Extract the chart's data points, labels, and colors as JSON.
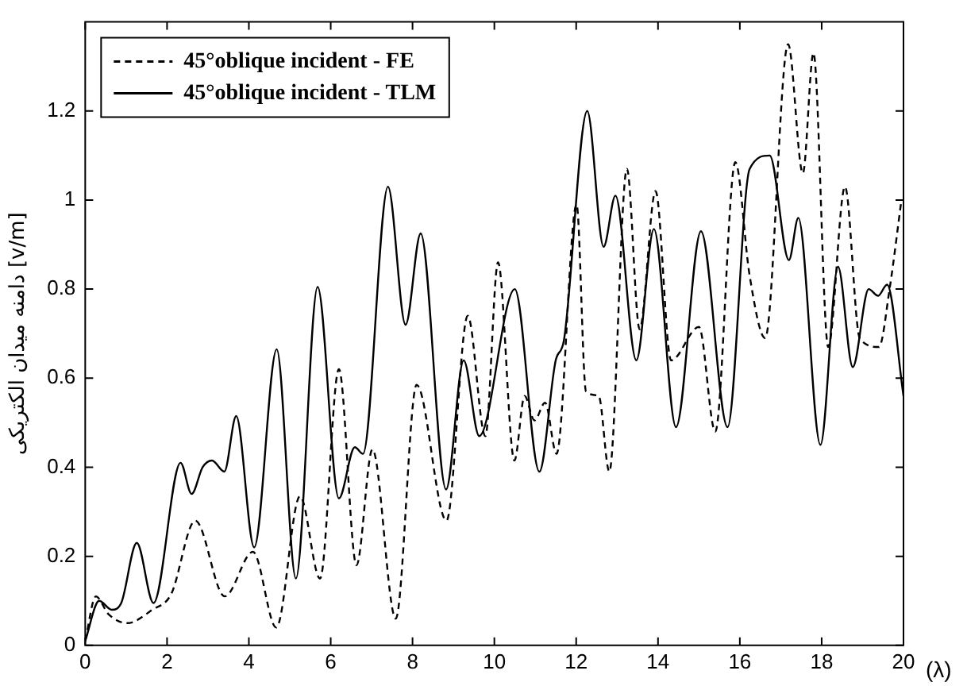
{
  "chart_data": {
    "type": "line",
    "xlabel": "(λ)",
    "ylabel": "دامنه میدان الکتریکی [v/m]",
    "xlim": [
      0,
      20
    ],
    "xticks": [
      0,
      2,
      4,
      6,
      8,
      10,
      12,
      14,
      16,
      18,
      20
    ],
    "ylim": [
      0,
      1.4
    ],
    "yticks": [
      0,
      0.2,
      0.4,
      0.6,
      0.8,
      1,
      1.2
    ],
    "grid": false,
    "legend": "top left",
    "marker": "none",
    "series": [
      {
        "name": "45°oblique incident - FE",
        "color": "#000000",
        "line_style": "dashed",
        "x": [
          0,
          0.26,
          0.57,
          1.03,
          1.64,
          2.1,
          2.69,
          3.41,
          4.1,
          4.67,
          5.25,
          5.74,
          6.2,
          6.63,
          7.02,
          7.59,
          8.1,
          8.83,
          9.35,
          9.78,
          10.09,
          10.49,
          10.74,
          10.98,
          11.24,
          11.52,
          12.01,
          12.24,
          12.55,
          12.81,
          13.24,
          13.55,
          13.94,
          14.32,
          15.0,
          15.4,
          15.89,
          16.24,
          16.62,
          17.18,
          17.54,
          17.8,
          18.16,
          18.57,
          18.93,
          19.4,
          19.66,
          19.95
        ],
        "values": [
          0.01,
          0.11,
          0.07,
          0.05,
          0.08,
          0.115,
          0.28,
          0.11,
          0.21,
          0.04,
          0.335,
          0.15,
          0.62,
          0.18,
          0.44,
          0.06,
          0.585,
          0.28,
          0.74,
          0.47,
          0.86,
          0.415,
          0.56,
          0.505,
          0.545,
          0.43,
          0.99,
          0.57,
          0.56,
          0.39,
          1.07,
          0.71,
          1.02,
          0.64,
          0.715,
          0.48,
          1.085,
          0.83,
          0.69,
          1.35,
          1.06,
          1.33,
          0.67,
          1.03,
          0.69,
          0.67,
          0.8,
          1.0
        ]
      },
      {
        "name": "45°oblique incident - TLM",
        "color": "#000000",
        "line_style": "solid",
        "x": [
          0,
          0.34,
          0.65,
          0.88,
          1.26,
          1.67,
          2.33,
          2.6,
          2.87,
          3.1,
          3.4,
          3.69,
          4.13,
          4.68,
          5.15,
          5.68,
          6.2,
          6.59,
          6.79,
          7.4,
          7.83,
          8.2,
          8.82,
          9.25,
          9.63,
          10.5,
          11.1,
          11.5,
          11.7,
          12.27,
          12.67,
          12.96,
          13.47,
          13.9,
          14.44,
          15.05,
          15.7,
          16.24,
          16.73,
          17.2,
          17.43,
          17.97,
          18.4,
          18.76,
          19.15,
          19.38,
          19.6,
          20
        ],
        "values": [
          0.01,
          0.1,
          0.08,
          0.095,
          0.23,
          0.095,
          0.41,
          0.34,
          0.4,
          0.415,
          0.39,
          0.515,
          0.22,
          0.665,
          0.15,
          0.805,
          0.33,
          0.445,
          0.43,
          1.03,
          0.72,
          0.925,
          0.35,
          0.64,
          0.47,
          0.8,
          0.39,
          0.64,
          0.685,
          1.2,
          0.895,
          1.01,
          0.64,
          0.935,
          0.49,
          0.93,
          0.49,
          1.07,
          1.1,
          0.865,
          0.96,
          0.45,
          0.85,
          0.625,
          0.8,
          0.785,
          0.81,
          0.56
        ]
      }
    ]
  }
}
